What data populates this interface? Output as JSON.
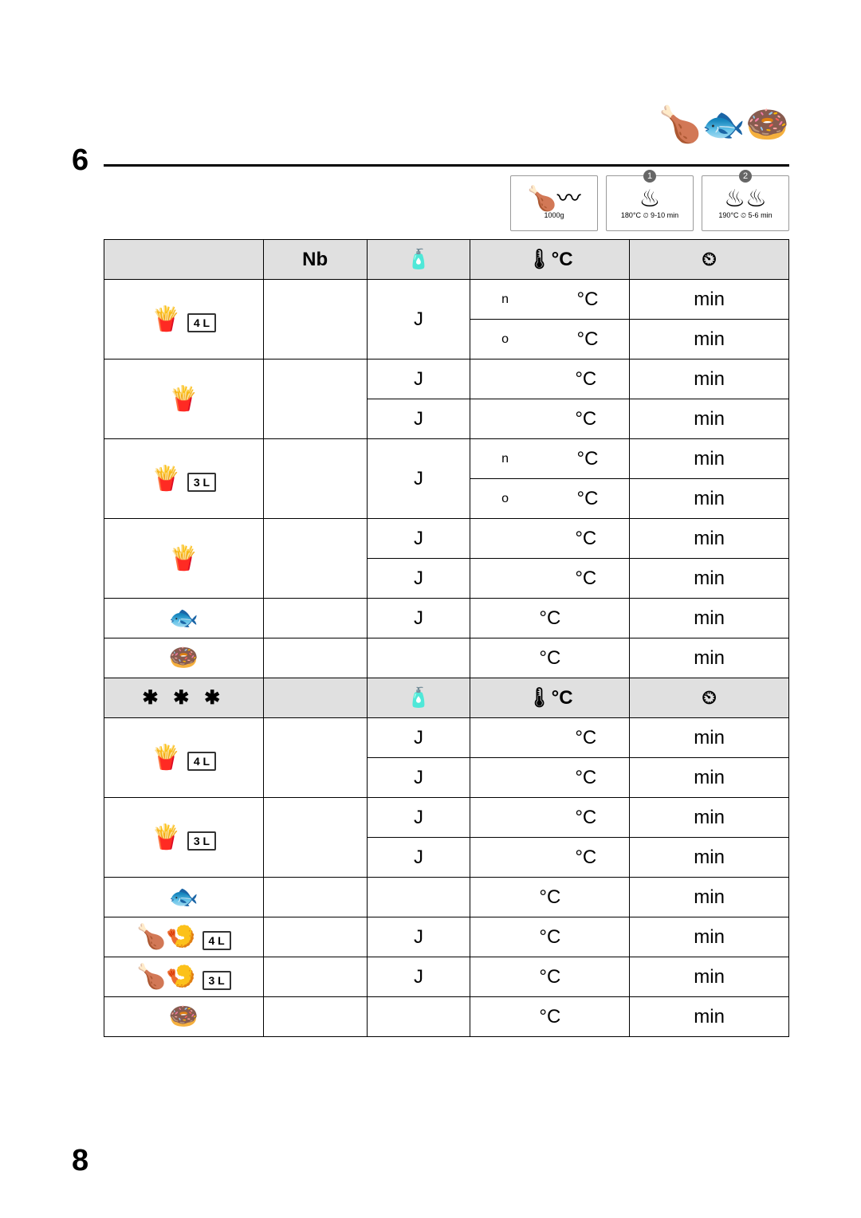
{
  "chapter": "6",
  "page": "8",
  "header_boxes": [
    {
      "label": "",
      "glyph": "🍗〰",
      "sub": "1000g"
    },
    {
      "label": "1",
      "glyph": "♨",
      "sub": "180°C ⏲ 9-10 min"
    },
    {
      "label": "2",
      "glyph": "♨♨",
      "sub": "190°C ⏲ 5-6 min"
    }
  ],
  "columns": {
    "nb": "Nb",
    "oil": "🧴",
    "temp": "🌡°C",
    "time": "⏲"
  },
  "section2_label": "✱ ✱ ✱",
  "rows_s1": [
    {
      "food": "fries",
      "foodGlyph": "🍟",
      "tank": "4 L",
      "span": 2,
      "oil_span": 2,
      "oil": "J",
      "sub": [
        {
          "temp_pre": "n",
          "temp": "°C",
          "time": "min"
        },
        {
          "temp_pre": "o",
          "temp": "°C",
          "time": "min"
        }
      ]
    },
    {
      "food": "fries2",
      "foodGlyph": "🍟",
      "tank": "",
      "span": 2,
      "oil_span": 1,
      "oil": "J",
      "sub": [
        {
          "temp_pre": "",
          "temp": "°C",
          "time": "min"
        },
        {
          "temp_pre": "",
          "temp": "°C",
          "time": "min"
        }
      ]
    },
    {
      "food": "fries3",
      "foodGlyph": "🍟",
      "tank": "3 L",
      "span": 2,
      "oil_span": 2,
      "oil": "J",
      "sub": [
        {
          "temp_pre": "n",
          "temp": "°C",
          "time": "min"
        },
        {
          "temp_pre": "o",
          "temp": "°C",
          "time": "min"
        }
      ]
    },
    {
      "food": "fries4",
      "foodGlyph": "🍟",
      "tank": "",
      "span": 2,
      "oil_span": 1,
      "oil": "J",
      "sub": [
        {
          "temp_pre": "",
          "temp": "°C",
          "time": "min"
        },
        {
          "temp_pre": "",
          "temp": "°C",
          "time": "min"
        }
      ]
    },
    {
      "food": "fish",
      "foodGlyph": "🐟",
      "tank": "",
      "span": 1,
      "oil": "J",
      "temp": "°C",
      "time": "min"
    },
    {
      "food": "donut",
      "foodGlyph": "🍩",
      "tank": "",
      "span": 1,
      "oil": "",
      "temp": "°C",
      "time": "min"
    }
  ],
  "rows_s2": [
    {
      "food": "frozen-fries4L",
      "foodGlyph": "🍟",
      "tank": "4 L",
      "span": 2,
      "oil_span": 1,
      "oil": "J",
      "sub": [
        {
          "temp": "°C",
          "time": "min"
        },
        {
          "temp": "°C",
          "time": "min"
        }
      ]
    },
    {
      "food": "frozen-fries3L",
      "foodGlyph": "🍟",
      "tank": "3 L",
      "span": 2,
      "oil_span": 1,
      "oil": "J",
      "sub": [
        {
          "temp": "°C",
          "time": "min"
        },
        {
          "temp": "°C",
          "time": "min"
        }
      ]
    },
    {
      "food": "fish2",
      "foodGlyph": "🐟",
      "tank": "",
      "span": 1,
      "oil": "",
      "temp": "°C",
      "time": "min"
    },
    {
      "food": "chicken4L",
      "foodGlyph": "🍗🍤",
      "tank": "4 L",
      "span": 1,
      "oil": "J",
      "temp": "°C",
      "time": "min"
    },
    {
      "food": "chicken3L",
      "foodGlyph": "🍗🍤",
      "tank": "3 L",
      "span": 1,
      "oil": "J",
      "temp": "°C",
      "time": "min"
    },
    {
      "food": "donut2",
      "foodGlyph": "🍩",
      "tank": "",
      "span": 1,
      "oil": "",
      "temp": "°C",
      "time": "min"
    }
  ],
  "corner_art": "🍗🐟🍩"
}
